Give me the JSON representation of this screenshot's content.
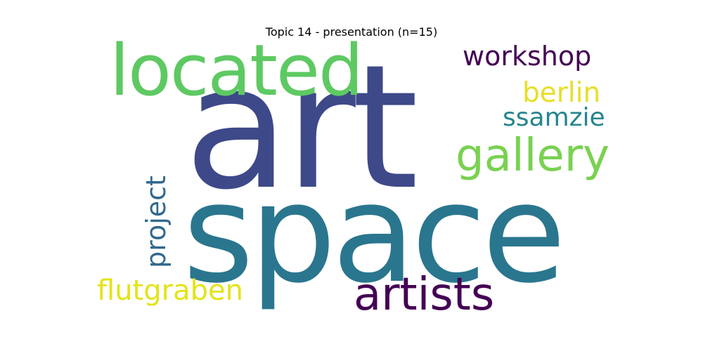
{
  "title": "Topic 14 - presentation (n=15)",
  "words": [
    {
      "text": "art",
      "color": "#3e4989"
    },
    {
      "text": "space",
      "color": "#2a768e"
    },
    {
      "text": "located",
      "color": "#5ec962"
    },
    {
      "text": "artists",
      "color": "#440154"
    },
    {
      "text": "gallery",
      "color": "#7ad151"
    },
    {
      "text": "workshop",
      "color": "#440154"
    },
    {
      "text": "berlin",
      "color": "#e6df29"
    },
    {
      "text": "ssamzie",
      "color": "#25858e"
    },
    {
      "text": "flutgraben",
      "color": "#e3e418"
    },
    {
      "text": "project",
      "color": "#31688e"
    }
  ]
}
